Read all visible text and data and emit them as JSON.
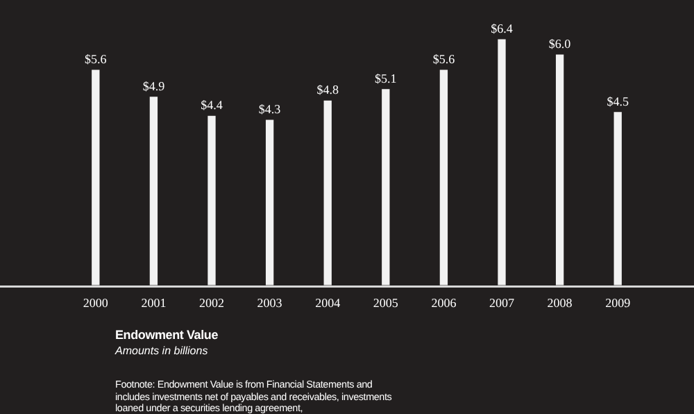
{
  "chart_data": {
    "type": "bar",
    "title": "Endowment Value",
    "subtitle": "Amounts in billions",
    "categories": [
      "2000",
      "2001",
      "2002",
      "2003",
      "2004",
      "2005",
      "2006",
      "2007",
      "2008",
      "2009"
    ],
    "values": [
      5.6,
      4.9,
      4.4,
      4.3,
      4.8,
      5.1,
      5.6,
      6.4,
      6.0,
      4.5
    ],
    "value_labels": [
      "$5.6",
      "$4.9",
      "$4.4",
      "$4.3",
      "$4.8",
      "$5.1",
      "$5.6",
      "$6.4",
      "$6.0",
      "$4.5"
    ],
    "color": "#f2f2f2",
    "legend": false,
    "annotations": [
      "Footnote: Endowment Value is from Financial Statements and includes investments net of payables and receivables, investments loaned under a securities lending agreement,"
    ]
  }
}
